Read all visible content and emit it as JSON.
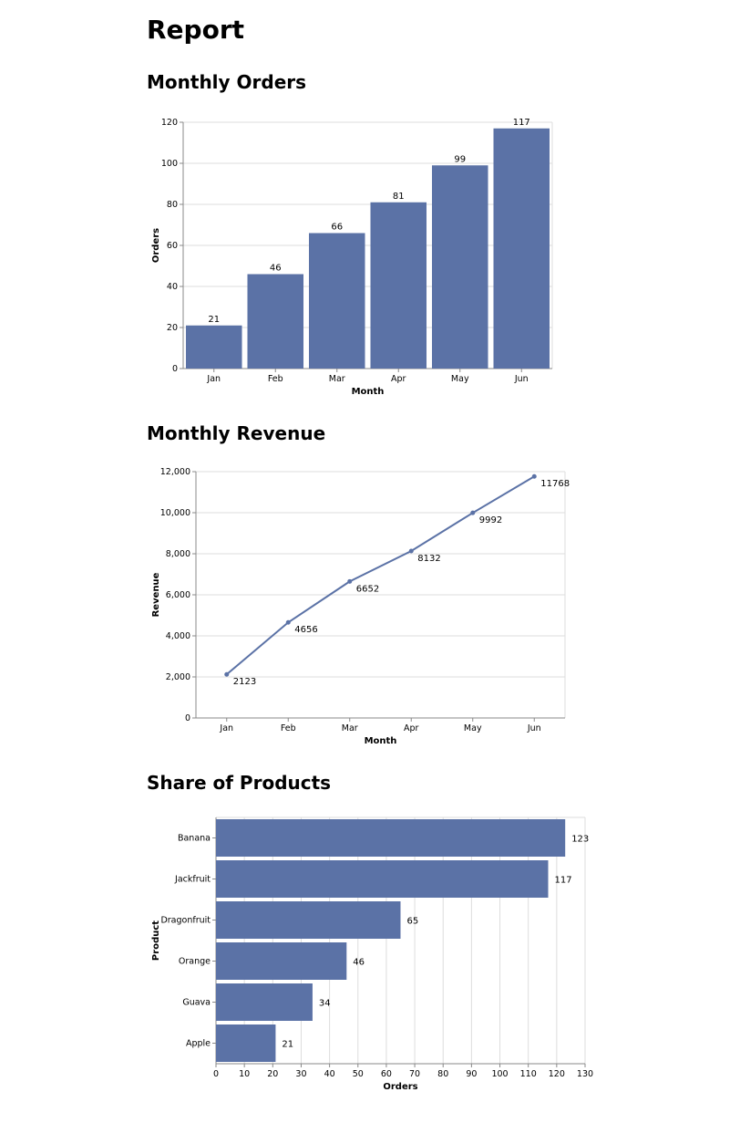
{
  "page": {
    "title": "Report"
  },
  "colors": {
    "bar": "#5b72a6",
    "line": "#5b72a6",
    "grid": "#dddddd",
    "axis": "#888888"
  },
  "charts": [
    {
      "section_title": "Monthly Orders",
      "chart_data": {
        "type": "bar",
        "categories": [
          "Jan",
          "Feb",
          "Mar",
          "Apr",
          "May",
          "Jun"
        ],
        "values": [
          21,
          46,
          66,
          81,
          99,
          117
        ],
        "xlabel": "Month",
        "ylabel": "Orders",
        "ylim": [
          0,
          120
        ],
        "yticks": [
          0,
          20,
          40,
          60,
          80,
          100,
          120
        ],
        "grid": true,
        "data_labels": true
      }
    },
    {
      "section_title": "Monthly Revenue",
      "chart_data": {
        "type": "line",
        "categories": [
          "Jan",
          "Feb",
          "Mar",
          "Apr",
          "May",
          "Jun"
        ],
        "values": [
          2123,
          4656,
          6652,
          8132,
          9992,
          11768
        ],
        "xlabel": "Month",
        "ylabel": "Revenue",
        "ylim": [
          0,
          12000
        ],
        "yticks": [
          0,
          2000,
          4000,
          6000,
          8000,
          10000,
          12000
        ],
        "ytick_labels": [
          "0",
          "2,000",
          "4,000",
          "6,000",
          "8,000",
          "10,000",
          "12,000"
        ],
        "grid": true,
        "data_labels": true
      }
    },
    {
      "section_title": "Share of Products",
      "chart_data": {
        "type": "bar",
        "orientation": "horizontal",
        "categories": [
          "Banana",
          "Jackfruit",
          "Dragonfruit",
          "Orange",
          "Guava",
          "Apple"
        ],
        "values": [
          123,
          117,
          65,
          46,
          34,
          21
        ],
        "xlabel": "Orders",
        "ylabel": "Product",
        "xlim": [
          0,
          130
        ],
        "xticks": [
          0,
          10,
          20,
          30,
          40,
          50,
          60,
          70,
          80,
          90,
          100,
          110,
          120,
          130
        ],
        "grid": true,
        "data_labels": true
      }
    }
  ]
}
